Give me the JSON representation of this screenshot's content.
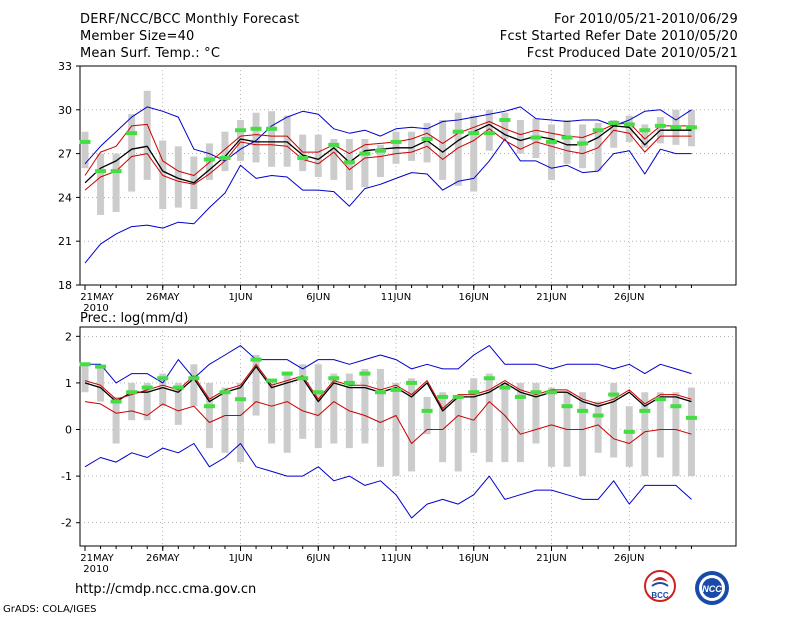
{
  "header": {
    "title": "DERF/NCC/BCC Monthly Forecast",
    "member_size": "Member Size=40",
    "panel1_label": "Mean Surf. Temp.: °C",
    "period": "For 2010/05/21-2010/06/29",
    "started": "Fcst Started Refer Date 2010/05/20",
    "produced": "Fcst Produced Date 2010/05/21"
  },
  "footer": {
    "url": "http://cmdp.ncc.cma.gov.cn",
    "credit": "GrADS: COLA/IGES",
    "logo_left": "BCC",
    "logo_right": "NCC"
  },
  "colors": {
    "ensemble_range": "#0000cc",
    "ensemble_mean": "#000000",
    "climatology_band": "#cc0000",
    "spread_bar": "#cccccc",
    "observed": "#44dd44"
  },
  "chart_data": [
    {
      "type": "line",
      "title": "Mean Surf. Temp.: °C",
      "ylim": [
        18,
        33
      ],
      "yticks": [
        "18",
        "21",
        "24",
        "27",
        "30",
        "33"
      ],
      "xticks": [
        "21MAY",
        "26MAY",
        "1JUN",
        "6JUN",
        "11JUN",
        "16JUN",
        "21JUN",
        "26JUN"
      ],
      "xtick_year": "2010",
      "days": 40,
      "series": [
        {
          "name": "max",
          "values": [
            26.3,
            27.5,
            28.5,
            29.5,
            30.2,
            29.9,
            29.5,
            27.3,
            27.0,
            26.5,
            27.3,
            27.9,
            28.9,
            29.5,
            29.9,
            29.7,
            28.7,
            28.4,
            28.6,
            28.2,
            28.7,
            28.8,
            28.7,
            29.2,
            29.3,
            29.5,
            29.7,
            29.9,
            30.2,
            29.4,
            29.3,
            29.2,
            29.3,
            29.3,
            28.9,
            29.3,
            29.9,
            30.0,
            29.3,
            30.0
          ]
        },
        {
          "name": "min",
          "values": [
            19.5,
            20.8,
            21.5,
            22.0,
            22.1,
            21.9,
            22.3,
            22.2,
            23.3,
            24.3,
            26.2,
            25.3,
            25.5,
            25.4,
            24.5,
            24.5,
            24.4,
            23.4,
            24.6,
            24.9,
            25.3,
            25.7,
            25.6,
            24.5,
            25.1,
            25.3,
            26.5,
            28.0,
            26.5,
            26.5,
            26.0,
            26.2,
            25.7,
            25.8,
            27.0,
            27.2,
            25.6,
            27.3,
            27.0,
            27.0
          ]
        },
        {
          "name": "mean",
          "values": [
            25.0,
            26.0,
            26.5,
            27.3,
            27.5,
            25.8,
            25.3,
            25.0,
            25.9,
            26.8,
            28.0,
            27.8,
            27.8,
            27.8,
            26.9,
            26.6,
            27.4,
            26.4,
            27.2,
            27.3,
            27.4,
            27.4,
            27.9,
            27.1,
            27.9,
            28.5,
            29.0,
            28.3,
            27.9,
            28.2,
            28.0,
            27.6,
            27.6,
            28.1,
            28.9,
            28.8,
            27.6,
            28.6,
            28.6,
            28.6
          ]
        },
        {
          "name": "clim_upper",
          "values": [
            25.5,
            27.1,
            27.5,
            28.9,
            29.0,
            26.5,
            25.8,
            25.5,
            26.4,
            27.3,
            28.2,
            28.3,
            28.2,
            28.2,
            27.1,
            27.1,
            27.6,
            27.0,
            27.6,
            27.7,
            27.8,
            28.0,
            28.4,
            27.7,
            28.4,
            28.8,
            29.2,
            28.7,
            28.3,
            28.6,
            28.4,
            28.2,
            28.1,
            28.5,
            29.0,
            29.1,
            28.0,
            28.9,
            28.9,
            28.9
          ]
        },
        {
          "name": "clim_lower",
          "values": [
            24.5,
            25.4,
            25.8,
            26.8,
            27.0,
            25.5,
            25.1,
            24.9,
            25.6,
            26.5,
            27.8,
            27.6,
            27.6,
            27.5,
            26.6,
            26.3,
            27.1,
            25.9,
            26.7,
            26.8,
            27.0,
            27.1,
            27.5,
            26.6,
            27.4,
            27.9,
            28.7,
            27.9,
            27.3,
            27.8,
            27.5,
            27.2,
            27.0,
            27.4,
            28.6,
            28.4,
            27.1,
            28.2,
            28.2,
            28.2
          ]
        }
      ],
      "spread_bars": [
        [
          26.0,
          28.5
        ],
        [
          22.8,
          27.0
        ],
        [
          23.0,
          27.0
        ],
        [
          24.4,
          29.7
        ],
        [
          25.2,
          31.3
        ],
        [
          23.2,
          27.9
        ],
        [
          23.3,
          27.5
        ],
        [
          23.2,
          26.8
        ],
        [
          25.2,
          27.7
        ],
        [
          25.8,
          28.5
        ],
        [
          26.5,
          29.3
        ],
        [
          26.4,
          29.8
        ],
        [
          26.1,
          29.9
        ],
        [
          26.1,
          29.6
        ],
        [
          25.8,
          28.3
        ],
        [
          25.4,
          28.3
        ],
        [
          25.2,
          28.0
        ],
        [
          24.5,
          28.0
        ],
        [
          24.7,
          28.0
        ],
        [
          25.4,
          27.6
        ],
        [
          26.3,
          28.5
        ],
        [
          26.5,
          28.5
        ],
        [
          26.4,
          29.1
        ],
        [
          25.2,
          29.3
        ],
        [
          24.8,
          29.8
        ],
        [
          24.4,
          29.6
        ],
        [
          27.2,
          30.0
        ],
        [
          28.0,
          29.8
        ],
        [
          27.0,
          29.3
        ],
        [
          26.7,
          29.4
        ],
        [
          25.2,
          29.0
        ],
        [
          26.3,
          29.3
        ],
        [
          26.0,
          29.0
        ],
        [
          25.8,
          29.1
        ],
        [
          27.4,
          29.3
        ],
        [
          27.8,
          29.6
        ],
        [
          27.4,
          29.0
        ],
        [
          27.7,
          29.5
        ],
        [
          27.6,
          30.0
        ],
        [
          27.5,
          30.0
        ]
      ],
      "observed": [
        27.8,
        25.8,
        25.8,
        28.4,
        null,
        null,
        null,
        null,
        26.6,
        26.7,
        28.6,
        28.7,
        28.7,
        null,
        26.7,
        null,
        27.6,
        26.4,
        27.0,
        27.2,
        27.8,
        null,
        28.0,
        null,
        28.5,
        28.4,
        28.4,
        29.3,
        null,
        28.1,
        27.8,
        28.1,
        27.7,
        28.6,
        29.1,
        29.0,
        28.6,
        28.9,
        28.8,
        28.8
      ]
    },
    {
      "type": "line",
      "title": "Prec.: log(mm/d)",
      "ylim": [
        -2.5,
        2.2
      ],
      "yticks": [
        "-2",
        "-1",
        "0",
        "1",
        "2"
      ],
      "xticks": [
        "21MAY",
        "26MAY",
        "1JUN",
        "6JUN",
        "11JUN",
        "16JUN",
        "21JUN",
        "26JUN"
      ],
      "xtick_year": "2010",
      "days": 40,
      "series": [
        {
          "name": "max",
          "values": [
            1.4,
            1.4,
            1.0,
            1.2,
            1.2,
            1.0,
            1.5,
            1.1,
            1.4,
            1.6,
            1.8,
            1.5,
            1.5,
            1.5,
            1.3,
            1.5,
            1.5,
            1.4,
            1.5,
            1.6,
            1.5,
            1.3,
            1.4,
            1.3,
            1.3,
            1.6,
            1.8,
            1.4,
            1.4,
            1.4,
            1.3,
            1.4,
            1.4,
            1.4,
            1.3,
            1.4,
            1.2,
            1.4,
            1.3,
            1.2
          ]
        },
        {
          "name": "min",
          "values": [
            -0.8,
            -0.6,
            -0.7,
            -0.5,
            -0.6,
            -0.4,
            -0.5,
            -0.3,
            -0.8,
            -0.6,
            -0.3,
            -0.8,
            -0.9,
            -1.0,
            -1.0,
            -0.8,
            -1.1,
            -1.0,
            -1.2,
            -1.1,
            -1.4,
            -1.9,
            -1.6,
            -1.5,
            -1.6,
            -1.4,
            -1.0,
            -1.5,
            -1.4,
            -1.3,
            -1.3,
            -1.4,
            -1.5,
            -1.5,
            -1.1,
            -1.6,
            -1.2,
            -1.2,
            -1.2,
            -1.5
          ]
        },
        {
          "name": "mean",
          "values": [
            1.0,
            0.9,
            0.6,
            0.8,
            0.8,
            0.9,
            0.8,
            1.1,
            0.6,
            0.8,
            0.9,
            1.35,
            0.9,
            1.0,
            1.1,
            0.6,
            1.0,
            0.9,
            0.9,
            0.8,
            0.9,
            0.7,
            1.0,
            0.4,
            0.7,
            0.7,
            0.8,
            1.0,
            0.8,
            0.7,
            0.8,
            0.8,
            0.6,
            0.5,
            0.6,
            0.8,
            0.5,
            0.7,
            0.7,
            0.6
          ]
        },
        {
          "name": "clim_upper",
          "values": [
            1.05,
            0.95,
            0.65,
            0.75,
            0.85,
            0.95,
            0.85,
            1.15,
            0.65,
            0.85,
            0.95,
            1.4,
            0.95,
            1.05,
            1.15,
            0.65,
            1.05,
            0.95,
            0.95,
            0.85,
            0.95,
            0.75,
            1.05,
            0.45,
            0.75,
            0.75,
            0.85,
            1.05,
            0.85,
            0.75,
            0.85,
            0.85,
            0.65,
            0.55,
            0.65,
            0.85,
            0.55,
            0.75,
            0.75,
            0.65
          ]
        },
        {
          "name": "clim_lower",
          "values": [
            0.6,
            0.55,
            0.35,
            0.4,
            0.3,
            0.55,
            0.4,
            0.5,
            0.15,
            0.3,
            0.3,
            0.6,
            0.5,
            0.6,
            0.4,
            0.3,
            0.6,
            0.4,
            0.3,
            0.15,
            0.3,
            -0.3,
            0.0,
            0.0,
            0.3,
            0.2,
            0.6,
            0.3,
            -0.1,
            0.0,
            0.1,
            0.0,
            0.0,
            0.1,
            -0.2,
            -0.3,
            -0.05,
            0.0,
            0.0,
            -0.1
          ]
        }
      ],
      "spread_bars": [
        [
          0.8,
          1.4
        ],
        [
          0.6,
          1.35
        ],
        [
          -0.3,
          0.7
        ],
        [
          0.2,
          1.0
        ],
        [
          0.2,
          1.0
        ],
        [
          0.5,
          1.2
        ],
        [
          0.1,
          1.0
        ],
        [
          0.5,
          1.4
        ],
        [
          -0.4,
          1.0
        ],
        [
          -0.5,
          0.9
        ],
        [
          -0.7,
          1.0
        ],
        [
          0.3,
          1.6
        ],
        [
          -0.3,
          1.0
        ],
        [
          -0.5,
          1.2
        ],
        [
          -0.2,
          1.4
        ],
        [
          -0.4,
          1.4
        ],
        [
          -0.3,
          1.2
        ],
        [
          -0.4,
          1.2
        ],
        [
          -0.3,
          1.3
        ],
        [
          -0.8,
          1.3
        ],
        [
          -1.0,
          1.0
        ],
        [
          -0.9,
          1.1
        ],
        [
          -0.1,
          0.7
        ],
        [
          -0.7,
          0.8
        ],
        [
          -0.9,
          0.7
        ],
        [
          -0.5,
          1.1
        ],
        [
          -0.7,
          1.2
        ],
        [
          -0.7,
          1.0
        ],
        [
          -0.7,
          1.0
        ],
        [
          -0.3,
          1.0
        ],
        [
          -0.8,
          0.9
        ],
        [
          -0.8,
          0.8
        ],
        [
          -1.0,
          0.8
        ],
        [
          -0.5,
          0.6
        ],
        [
          -0.6,
          1.0
        ],
        [
          -0.8,
          0.5
        ],
        [
          -1.0,
          0.8
        ],
        [
          -0.6,
          0.8
        ],
        [
          -1.0,
          0.8
        ],
        [
          -1.0,
          0.9
        ]
      ],
      "observed": [
        1.4,
        1.35,
        0.6,
        0.8,
        0.9,
        1.1,
        0.9,
        1.1,
        0.5,
        0.8,
        0.65,
        1.5,
        1.05,
        1.2,
        1.1,
        0.8,
        1.1,
        1.0,
        1.2,
        0.8,
        0.85,
        1.0,
        0.4,
        0.7,
        0.7,
        0.8,
        1.1,
        0.9,
        0.7,
        0.8,
        0.8,
        0.5,
        0.4,
        0.3,
        0.75,
        -0.05,
        0.4,
        0.65,
        0.5,
        0.25
      ]
    }
  ]
}
